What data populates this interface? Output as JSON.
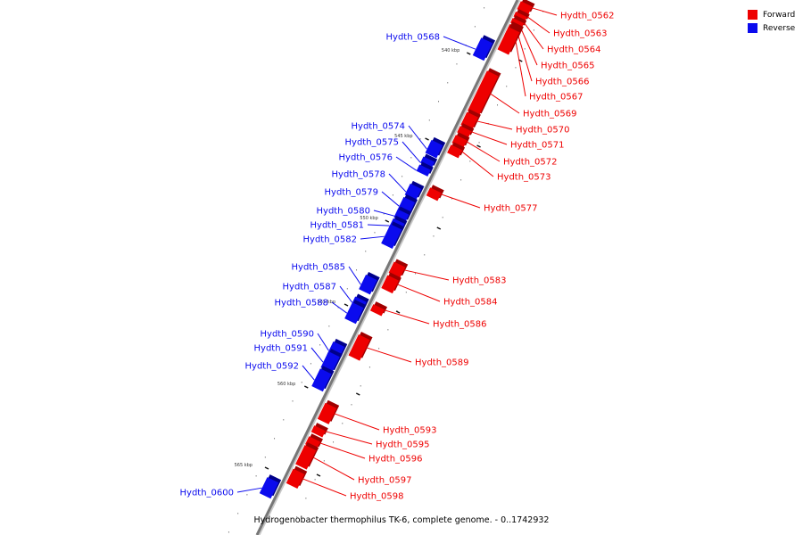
{
  "legend": {
    "forward_label": "Forward",
    "reverse_label": "Reverse",
    "forward_color": "#ee0000",
    "reverse_color": "#0b0bee"
  },
  "caption": "Hydrogenobacter thermophilus TK-6, complete genome. - 0..1742932",
  "scale_ticks": [
    {
      "label": "540 kbp"
    },
    {
      "label": "545 kbp"
    },
    {
      "label": "550 kbp"
    },
    {
      "label": "555 kbp"
    },
    {
      "label": "560 kbp"
    },
    {
      "label": "565 kbp"
    }
  ],
  "genes": [
    {
      "label": "Hydth_0562",
      "strand": "forward"
    },
    {
      "label": "Hydth_0563",
      "strand": "forward"
    },
    {
      "label": "Hydth_0564",
      "strand": "forward"
    },
    {
      "label": "Hydth_0565",
      "strand": "forward"
    },
    {
      "label": "Hydth_0566",
      "strand": "forward"
    },
    {
      "label": "Hydth_0567",
      "strand": "forward"
    },
    {
      "label": "Hydth_0568",
      "strand": "reverse"
    },
    {
      "label": "Hydth_0569",
      "strand": "forward"
    },
    {
      "label": "Hydth_0570",
      "strand": "forward"
    },
    {
      "label": "Hydth_0571",
      "strand": "forward"
    },
    {
      "label": "Hydth_0572",
      "strand": "forward"
    },
    {
      "label": "Hydth_0573",
      "strand": "forward"
    },
    {
      "label": "Hydth_0574",
      "strand": "reverse"
    },
    {
      "label": "Hydth_0575",
      "strand": "reverse"
    },
    {
      "label": "Hydth_0576",
      "strand": "reverse"
    },
    {
      "label": "Hydth_0577",
      "strand": "forward"
    },
    {
      "label": "Hydth_0578",
      "strand": "reverse"
    },
    {
      "label": "Hydth_0579",
      "strand": "reverse"
    },
    {
      "label": "Hydth_0580",
      "strand": "reverse"
    },
    {
      "label": "Hydth_0581",
      "strand": "reverse"
    },
    {
      "label": "Hydth_0582",
      "strand": "reverse"
    },
    {
      "label": "Hydth_0583",
      "strand": "forward"
    },
    {
      "label": "Hydth_0584",
      "strand": "forward"
    },
    {
      "label": "Hydth_0585",
      "strand": "reverse"
    },
    {
      "label": "Hydth_0586",
      "strand": "forward"
    },
    {
      "label": "Hydth_0587",
      "strand": "reverse"
    },
    {
      "label": "Hydth_0588",
      "strand": "reverse"
    },
    {
      "label": "Hydth_0589",
      "strand": "forward"
    },
    {
      "label": "Hydth_0590",
      "strand": "reverse"
    },
    {
      "label": "Hydth_0591",
      "strand": "reverse"
    },
    {
      "label": "Hydth_0592",
      "strand": "reverse"
    },
    {
      "label": "Hydth_0593",
      "strand": "forward"
    },
    {
      "label": "Hydth_0595",
      "strand": "forward"
    },
    {
      "label": "Hydth_0596",
      "strand": "forward"
    },
    {
      "label": "Hydth_0597",
      "strand": "forward"
    },
    {
      "label": "Hydth_0598",
      "strand": "forward"
    },
    {
      "label": "Hydth_0600",
      "strand": "reverse"
    }
  ]
}
